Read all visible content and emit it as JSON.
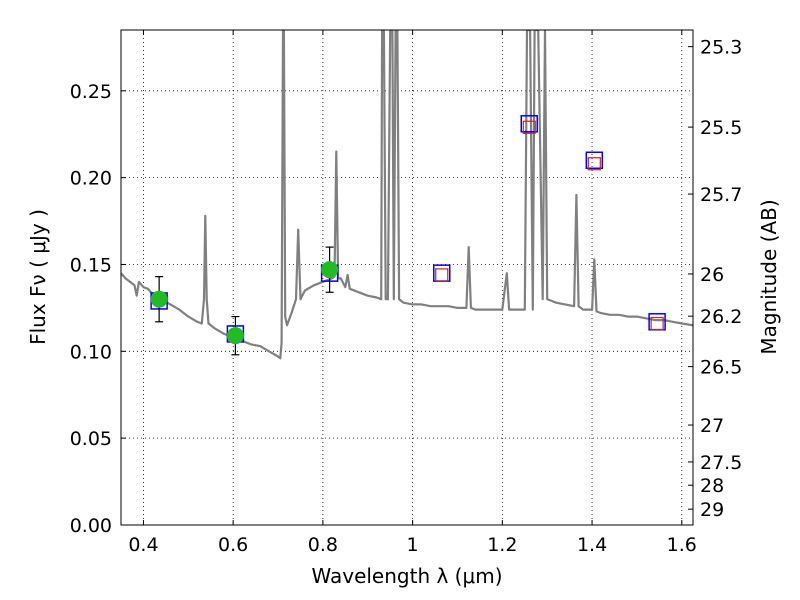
{
  "chart_data": {
    "type": "line",
    "title": "",
    "xlabel": "Wavelength  λ (μm)",
    "ylabel": "Flux  Fν  ( μJy )",
    "y2label": "Magnitude (AB)",
    "xlim": [
      0.35,
      1.625
    ],
    "ylim": [
      0.0,
      0.285
    ],
    "grid": true,
    "x_ticks": [
      0.4,
      0.6,
      0.8,
      1.0,
      1.2,
      1.4,
      1.6
    ],
    "x_tick_labels": [
      "0.4",
      "0.6",
      "0.8",
      "1",
      "1.2",
      "1.4",
      "1.6"
    ],
    "y_ticks": [
      0.0,
      0.05,
      0.1,
      0.15,
      0.2,
      0.25
    ],
    "y_tick_labels": [
      "0.00",
      "0.05",
      "0.10",
      "0.15",
      "0.20",
      "0.25"
    ],
    "y2_ticks": [
      25.3,
      25.5,
      25.7,
      26,
      26.2,
      26.5,
      27,
      27.5,
      28,
      29
    ],
    "y2_tick_labels": [
      "25.3",
      "25.5",
      "25.7",
      "26",
      "26.2",
      "26.5",
      "27",
      "27.5",
      "28",
      "29"
    ],
    "series": [
      {
        "kind": "sed-model",
        "color": "#808080",
        "x": [
          0.35,
          0.36,
          0.37,
          0.38,
          0.385,
          0.39,
          0.4,
          0.41,
          0.42,
          0.44,
          0.46,
          0.48,
          0.5,
          0.52,
          0.53,
          0.535,
          0.538,
          0.541,
          0.545,
          0.56,
          0.58,
          0.6,
          0.62,
          0.64,
          0.66,
          0.68,
          0.7,
          0.705,
          0.708,
          0.711,
          0.713,
          0.716,
          0.72,
          0.73,
          0.74,
          0.745,
          0.75,
          0.76,
          0.78,
          0.8,
          0.81,
          0.82,
          0.826,
          0.83,
          0.834,
          0.84,
          0.85,
          0.855,
          0.86,
          0.88,
          0.9,
          0.92,
          0.93,
          0.932,
          0.936,
          0.94,
          0.945,
          0.95,
          0.955,
          0.958,
          0.962,
          0.966,
          0.97,
          0.98,
          1.0,
          1.02,
          1.04,
          1.06,
          1.08,
          1.1,
          1.12,
          1.125,
          1.13,
          1.14,
          1.16,
          1.18,
          1.2,
          1.21,
          1.215,
          1.22,
          1.24,
          1.25,
          1.255,
          1.262,
          1.268,
          1.272,
          1.28,
          1.29,
          1.295,
          1.3,
          1.31,
          1.32,
          1.34,
          1.36,
          1.365,
          1.37,
          1.375,
          1.38,
          1.39,
          1.4,
          1.405,
          1.41,
          1.42,
          1.44,
          1.46,
          1.48,
          1.5,
          1.52,
          1.54,
          1.56,
          1.58,
          1.6,
          1.625
        ],
        "y": [
          0.145,
          0.142,
          0.14,
          0.138,
          0.132,
          0.14,
          0.137,
          0.136,
          0.133,
          0.13,
          0.127,
          0.124,
          0.12,
          0.117,
          0.116,
          0.13,
          0.178,
          0.13,
          0.116,
          0.113,
          0.11,
          0.108,
          0.106,
          0.104,
          0.103,
          0.1,
          0.097,
          0.096,
          0.105,
          0.285,
          0.285,
          0.12,
          0.115,
          0.122,
          0.13,
          0.17,
          0.13,
          0.135,
          0.138,
          0.14,
          0.141,
          0.142,
          0.143,
          0.215,
          0.142,
          0.142,
          0.137,
          0.144,
          0.136,
          0.134,
          0.132,
          0.131,
          0.13,
          0.285,
          0.285,
          0.13,
          0.13,
          0.285,
          0.285,
          0.13,
          0.285,
          0.285,
          0.13,
          0.128,
          0.127,
          0.127,
          0.126,
          0.126,
          0.126,
          0.125,
          0.125,
          0.16,
          0.125,
          0.124,
          0.124,
          0.124,
          0.124,
          0.145,
          0.124,
          0.124,
          0.124,
          0.124,
          0.285,
          0.285,
          0.124,
          0.285,
          0.285,
          0.13,
          0.285,
          0.13,
          0.129,
          0.128,
          0.127,
          0.126,
          0.19,
          0.126,
          0.125,
          0.124,
          0.124,
          0.124,
          0.153,
          0.123,
          0.122,
          0.121,
          0.121,
          0.12,
          0.12,
          0.119,
          0.118,
          0.118,
          0.117,
          0.116,
          0.115
        ]
      },
      {
        "kind": "observed-photometry",
        "color": "#22bb22",
        "x": [
          0.435,
          0.605,
          0.815
        ],
        "y": [
          0.13,
          0.109,
          0.147
        ],
        "yerr": [
          0.013,
          0.011,
          0.013
        ]
      },
      {
        "kind": "model-photometry-blue",
        "color": "#0000ff",
        "x": [
          0.435,
          0.605,
          0.815,
          1.065,
          1.26,
          1.405,
          1.545
        ],
        "y": [
          0.129,
          0.11,
          0.145,
          0.145,
          0.231,
          0.21,
          0.117
        ]
      },
      {
        "kind": "model-photometry-red",
        "color": "#cc2222",
        "x": [
          1.065,
          1.26,
          1.405,
          1.545
        ],
        "y": [
          0.144,
          0.229,
          0.208,
          0.116
        ]
      }
    ]
  }
}
